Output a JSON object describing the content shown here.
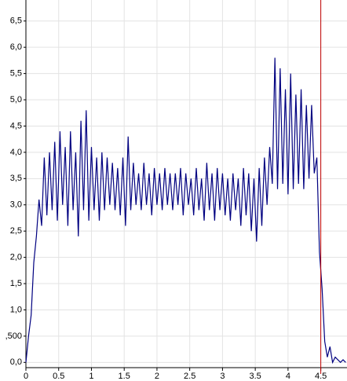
{
  "chart_data": {
    "type": "line",
    "x": [
      0,
      0.04,
      0.08,
      0.12,
      0.16,
      0.2,
      0.24,
      0.28,
      0.32,
      0.36,
      0.4,
      0.44,
      0.48,
      0.52,
      0.56,
      0.6,
      0.64,
      0.68,
      0.72,
      0.76,
      0.8,
      0.84,
      0.88,
      0.92,
      0.96,
      1,
      1.04,
      1.08,
      1.12,
      1.16,
      1.2,
      1.24,
      1.28,
      1.32,
      1.36,
      1.4,
      1.44,
      1.48,
      1.52,
      1.56,
      1.6,
      1.64,
      1.68,
      1.72,
      1.76,
      1.8,
      1.84,
      1.88,
      1.92,
      1.96,
      2,
      2.04,
      2.08,
      2.12,
      2.16,
      2.2,
      2.24,
      2.28,
      2.32,
      2.36,
      2.4,
      2.44,
      2.48,
      2.52,
      2.56,
      2.6,
      2.64,
      2.68,
      2.72,
      2.76,
      2.8,
      2.84,
      2.88,
      2.92,
      2.96,
      3,
      3.04,
      3.08,
      3.12,
      3.16,
      3.2,
      3.24,
      3.28,
      3.32,
      3.36,
      3.4,
      3.44,
      3.48,
      3.52,
      3.56,
      3.6,
      3.64,
      3.68,
      3.72,
      3.76,
      3.8,
      3.84,
      3.88,
      3.92,
      3.96,
      4,
      4.04,
      4.08,
      4.12,
      4.16,
      4.2,
      4.24,
      4.28,
      4.32,
      4.36,
      4.4,
      4.44,
      4.48,
      4.52,
      4.56,
      4.6,
      4.64,
      4.68,
      4.72,
      4.76,
      4.8,
      4.84,
      4.88
    ],
    "series": [
      {
        "color": "#000080",
        "values": [
          0,
          0.5,
          0.9,
          1.9,
          2.4,
          3.1,
          2.6,
          3.9,
          2.8,
          4.0,
          2.9,
          4.2,
          2.7,
          4.4,
          3.0,
          4.1,
          2.6,
          4.4,
          2.9,
          4.0,
          2.4,
          4.6,
          2.9,
          4.8,
          2.7,
          4.1,
          2.9,
          3.9,
          2.7,
          4.0,
          2.9,
          3.9,
          3.0,
          3.8,
          2.9,
          3.7,
          2.8,
          3.9,
          2.6,
          4.3,
          2.9,
          3.8,
          3.0,
          3.6,
          2.9,
          3.8,
          3.0,
          3.6,
          2.8,
          3.7,
          3.0,
          3.6,
          2.9,
          3.7,
          3.0,
          3.6,
          2.9,
          3.6,
          3.0,
          3.7,
          2.8,
          3.6,
          3.0,
          3.5,
          2.8,
          3.7,
          2.9,
          3.5,
          2.7,
          3.8,
          2.9,
          3.6,
          2.7,
          3.7,
          2.9,
          3.6,
          2.8,
          3.5,
          2.7,
          3.6,
          2.9,
          3.5,
          2.6,
          3.7,
          2.8,
          3.6,
          2.5,
          3.5,
          2.3,
          3.7,
          2.6,
          3.9,
          3.0,
          4.1,
          3.4,
          5.8,
          3.3,
          5.6,
          3.4,
          5.2,
          3.2,
          5.5,
          3.3,
          5.1,
          3.4,
          5.2,
          3.3,
          4.9,
          3.5,
          4.9,
          3.6,
          3.9,
          2.1,
          1.4,
          0.4,
          0.1,
          0.3,
          0,
          0.1,
          0.05,
          0,
          0.05,
          0
        ]
      }
    ],
    "xlim": [
      0,
      4.9
    ],
    "ylim": [
      -0.1,
      6.9
    ],
    "xticks": [
      0,
      0.5,
      1,
      1.5,
      2,
      2.5,
      3,
      3.5,
      4,
      4.5
    ],
    "yticks": [
      {
        "value": 0,
        "label": "0,0"
      },
      {
        "value": 0.5,
        "label": ",500"
      },
      {
        "value": 1,
        "label": "1,0"
      },
      {
        "value": 1.5,
        "label": "1,5"
      },
      {
        "value": 2,
        "label": "2,0"
      },
      {
        "value": 2.5,
        "label": "2,5"
      },
      {
        "value": 3,
        "label": "3,0"
      },
      {
        "value": 3.5,
        "label": "3,5"
      },
      {
        "value": 4,
        "label": "4,0"
      },
      {
        "value": 4.5,
        "label": "4,5"
      },
      {
        "value": 5,
        "label": "5,0"
      },
      {
        "value": 5.5,
        "label": "5,5"
      },
      {
        "value": 6,
        "label": "6,0"
      },
      {
        "value": 6.5,
        "label": "6,5"
      }
    ],
    "grid": true,
    "marker_x": 4.5,
    "marker_color": "#c00000"
  }
}
